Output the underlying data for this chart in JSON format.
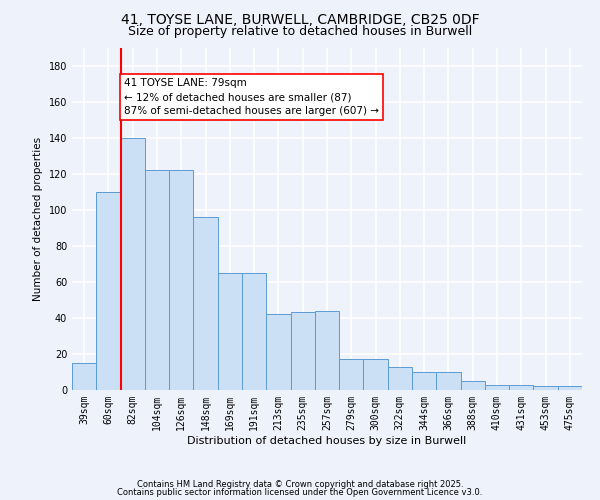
{
  "title1": "41, TOYSE LANE, BURWELL, CAMBRIDGE, CB25 0DF",
  "title2": "Size of property relative to detached houses in Burwell",
  "xlabel": "Distribution of detached houses by size in Burwell",
  "ylabel": "Number of detached properties",
  "categories": [
    "39sqm",
    "60sqm",
    "82sqm",
    "104sqm",
    "126sqm",
    "148sqm",
    "169sqm",
    "191sqm",
    "213sqm",
    "235sqm",
    "257sqm",
    "279sqm",
    "300sqm",
    "322sqm",
    "344sqm",
    "366sqm",
    "388sqm",
    "410sqm",
    "431sqm",
    "453sqm",
    "475sqm"
  ],
  "values": [
    15,
    110,
    140,
    122,
    122,
    96,
    65,
    65,
    42,
    43,
    44,
    17,
    17,
    13,
    10,
    10,
    5,
    3,
    3,
    2,
    2
  ],
  "bar_color": "#cce0f5",
  "bar_edge_color": "#5b9bd5",
  "vline_x": 1.5,
  "vline_color": "red",
  "annotation_text": "41 TOYSE LANE: 79sqm\n← 12% of detached houses are smaller (87)\n87% of semi-detached houses are larger (607) →",
  "annotation_box_color": "white",
  "annotation_box_edge": "red",
  "ylim": [
    0,
    190
  ],
  "yticks": [
    0,
    20,
    40,
    60,
    80,
    100,
    120,
    140,
    160,
    180
  ],
  "footer1": "Contains HM Land Registry data © Crown copyright and database right 2025.",
  "footer2": "Contains public sector information licensed under the Open Government Licence v3.0.",
  "background_color": "#eef2fa",
  "grid_color": "white",
  "title1_fontsize": 10,
  "title2_fontsize": 9,
  "annotation_fontsize": 7.5,
  "xlabel_fontsize": 8,
  "ylabel_fontsize": 7.5,
  "tick_fontsize": 7,
  "footer_fontsize": 6
}
